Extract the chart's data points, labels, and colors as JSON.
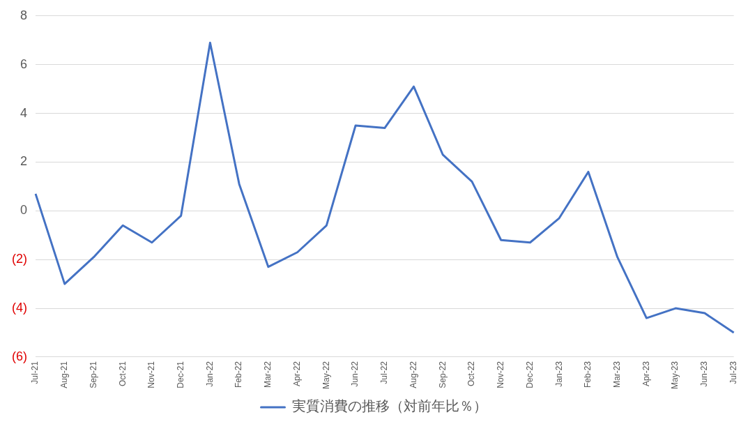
{
  "chart_data": {
    "type": "line",
    "categories": [
      "Jul-21",
      "Aug-21",
      "Sep-21",
      "Oct-21",
      "Nov-21",
      "Dec-21",
      "Jan-22",
      "Feb-22",
      "Mar-22",
      "Apr-22",
      "May-22",
      "Jun-22",
      "Jul-22",
      "Aug-22",
      "Sep-22",
      "Oct-22",
      "Nov-22",
      "Dec-22",
      "Jan-23",
      "Feb-23",
      "Mar-23",
      "Apr-23",
      "May-23",
      "Jun-23",
      "Jul-23"
    ],
    "series": [
      {
        "name": "実質消費の推移（対前年比％）",
        "color": "#4472c4",
        "values": [
          0.7,
          -3.0,
          -1.9,
          -0.6,
          -1.3,
          -0.2,
          6.9,
          1.1,
          -2.3,
          -1.7,
          -0.6,
          3.5,
          3.4,
          5.1,
          2.3,
          1.2,
          -1.2,
          -1.3,
          -0.3,
          1.6,
          -1.9,
          -4.4,
          -4.0,
          -4.2,
          -5.0
        ]
      }
    ],
    "ylim": [
      -6,
      8
    ],
    "yticks": [
      {
        "value": -6,
        "label": "(6)"
      },
      {
        "value": -4,
        "label": "(4)"
      },
      {
        "value": -2,
        "label": "(2)"
      },
      0,
      2,
      4,
      6,
      8
    ],
    "grid": "y",
    "legend": "bottom",
    "marker": "none",
    "line_style": "solid"
  }
}
